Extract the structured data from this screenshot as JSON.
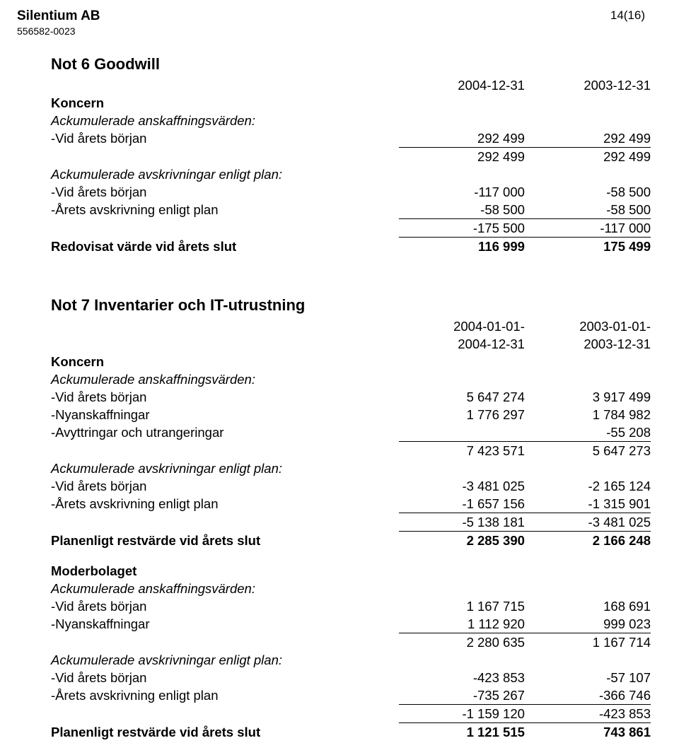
{
  "header": {
    "company": "Silentium AB",
    "org": "556582-0023",
    "page": "14(16)"
  },
  "note6": {
    "title": "Not 6  Goodwill",
    "periods": {
      "p1": "2004-12-31",
      "p2": "2003-12-31"
    },
    "koncern": "Koncern",
    "ack_ansk": "Ackumulerade anskaffningsvärden:",
    "vid_borjan": "-Vid årets början",
    "v1": {
      "c1": "292 499",
      "c2": "292 499"
    },
    "sum1": {
      "c1": "292 499",
      "c2": "292 499"
    },
    "ack_avskr": "Ackumulerade avskrivningar enligt plan:",
    "v2": {
      "c1": "-117 000",
      "c2": "-58 500"
    },
    "avskr_plan": "-Årets avskrivning enligt plan",
    "v3": {
      "c1": "-58 500",
      "c2": "-58 500"
    },
    "sum2": {
      "c1": "-175 500",
      "c2": "-117 000"
    },
    "redovisat": "Redovisat värde vid årets slut",
    "v4": {
      "c1": "116 999",
      "c2": "175 499"
    }
  },
  "note7": {
    "title": "Not 7  Inventarier och IT-utrustning",
    "periods": {
      "p1a": "2004-01-01-",
      "p1b": "2004-12-31",
      "p2a": "2003-01-01-",
      "p2b": "2003-12-31"
    },
    "koncern": "Koncern",
    "ack_ansk": "Ackumulerade anskaffningsvärden:",
    "vid_borjan": "-Vid årets början",
    "r1": {
      "c1": "5 647 274",
      "c2": "3 917 499"
    },
    "nyansk": "-Nyanskaffningar",
    "r2": {
      "c1": "1 776 297",
      "c2": "1 784 982"
    },
    "avytt": "-Avyttringar och utrangeringar",
    "r3": {
      "c1": "",
      "c2": "-55 208"
    },
    "sum1": {
      "c1": "7 423 571",
      "c2": "5 647 273"
    },
    "ack_avskr": "Ackumulerade avskrivningar enligt plan:",
    "r4": {
      "c1": "-3 481 025",
      "c2": "-2 165 124"
    },
    "avskr_plan": "-Årets avskrivning enligt plan",
    "r5": {
      "c1": "-1 657 156",
      "c2": "-1 315 901"
    },
    "sum2": {
      "c1": "-5 138 181",
      "c2": "-3 481 025"
    },
    "planenligt": "Planenligt restvärde vid årets slut",
    "r6": {
      "c1": "2 285 390",
      "c2": "2 166 248"
    },
    "moderbolaget": "Moderbolaget",
    "m1": {
      "c1": "1 167 715",
      "c2": "168 691"
    },
    "m2": {
      "c1": "1 112 920",
      "c2": "999 023"
    },
    "msum1": {
      "c1": "2 280 635",
      "c2": "1 167 714"
    },
    "m3": {
      "c1": "-423 853",
      "c2": "-57 107"
    },
    "m4": {
      "c1": "-735 267",
      "c2": "-366 746"
    },
    "msum2": {
      "c1": "-1 159 120",
      "c2": "-423 853"
    },
    "m5": {
      "c1": "1 121 515",
      "c2": "743 861"
    }
  }
}
